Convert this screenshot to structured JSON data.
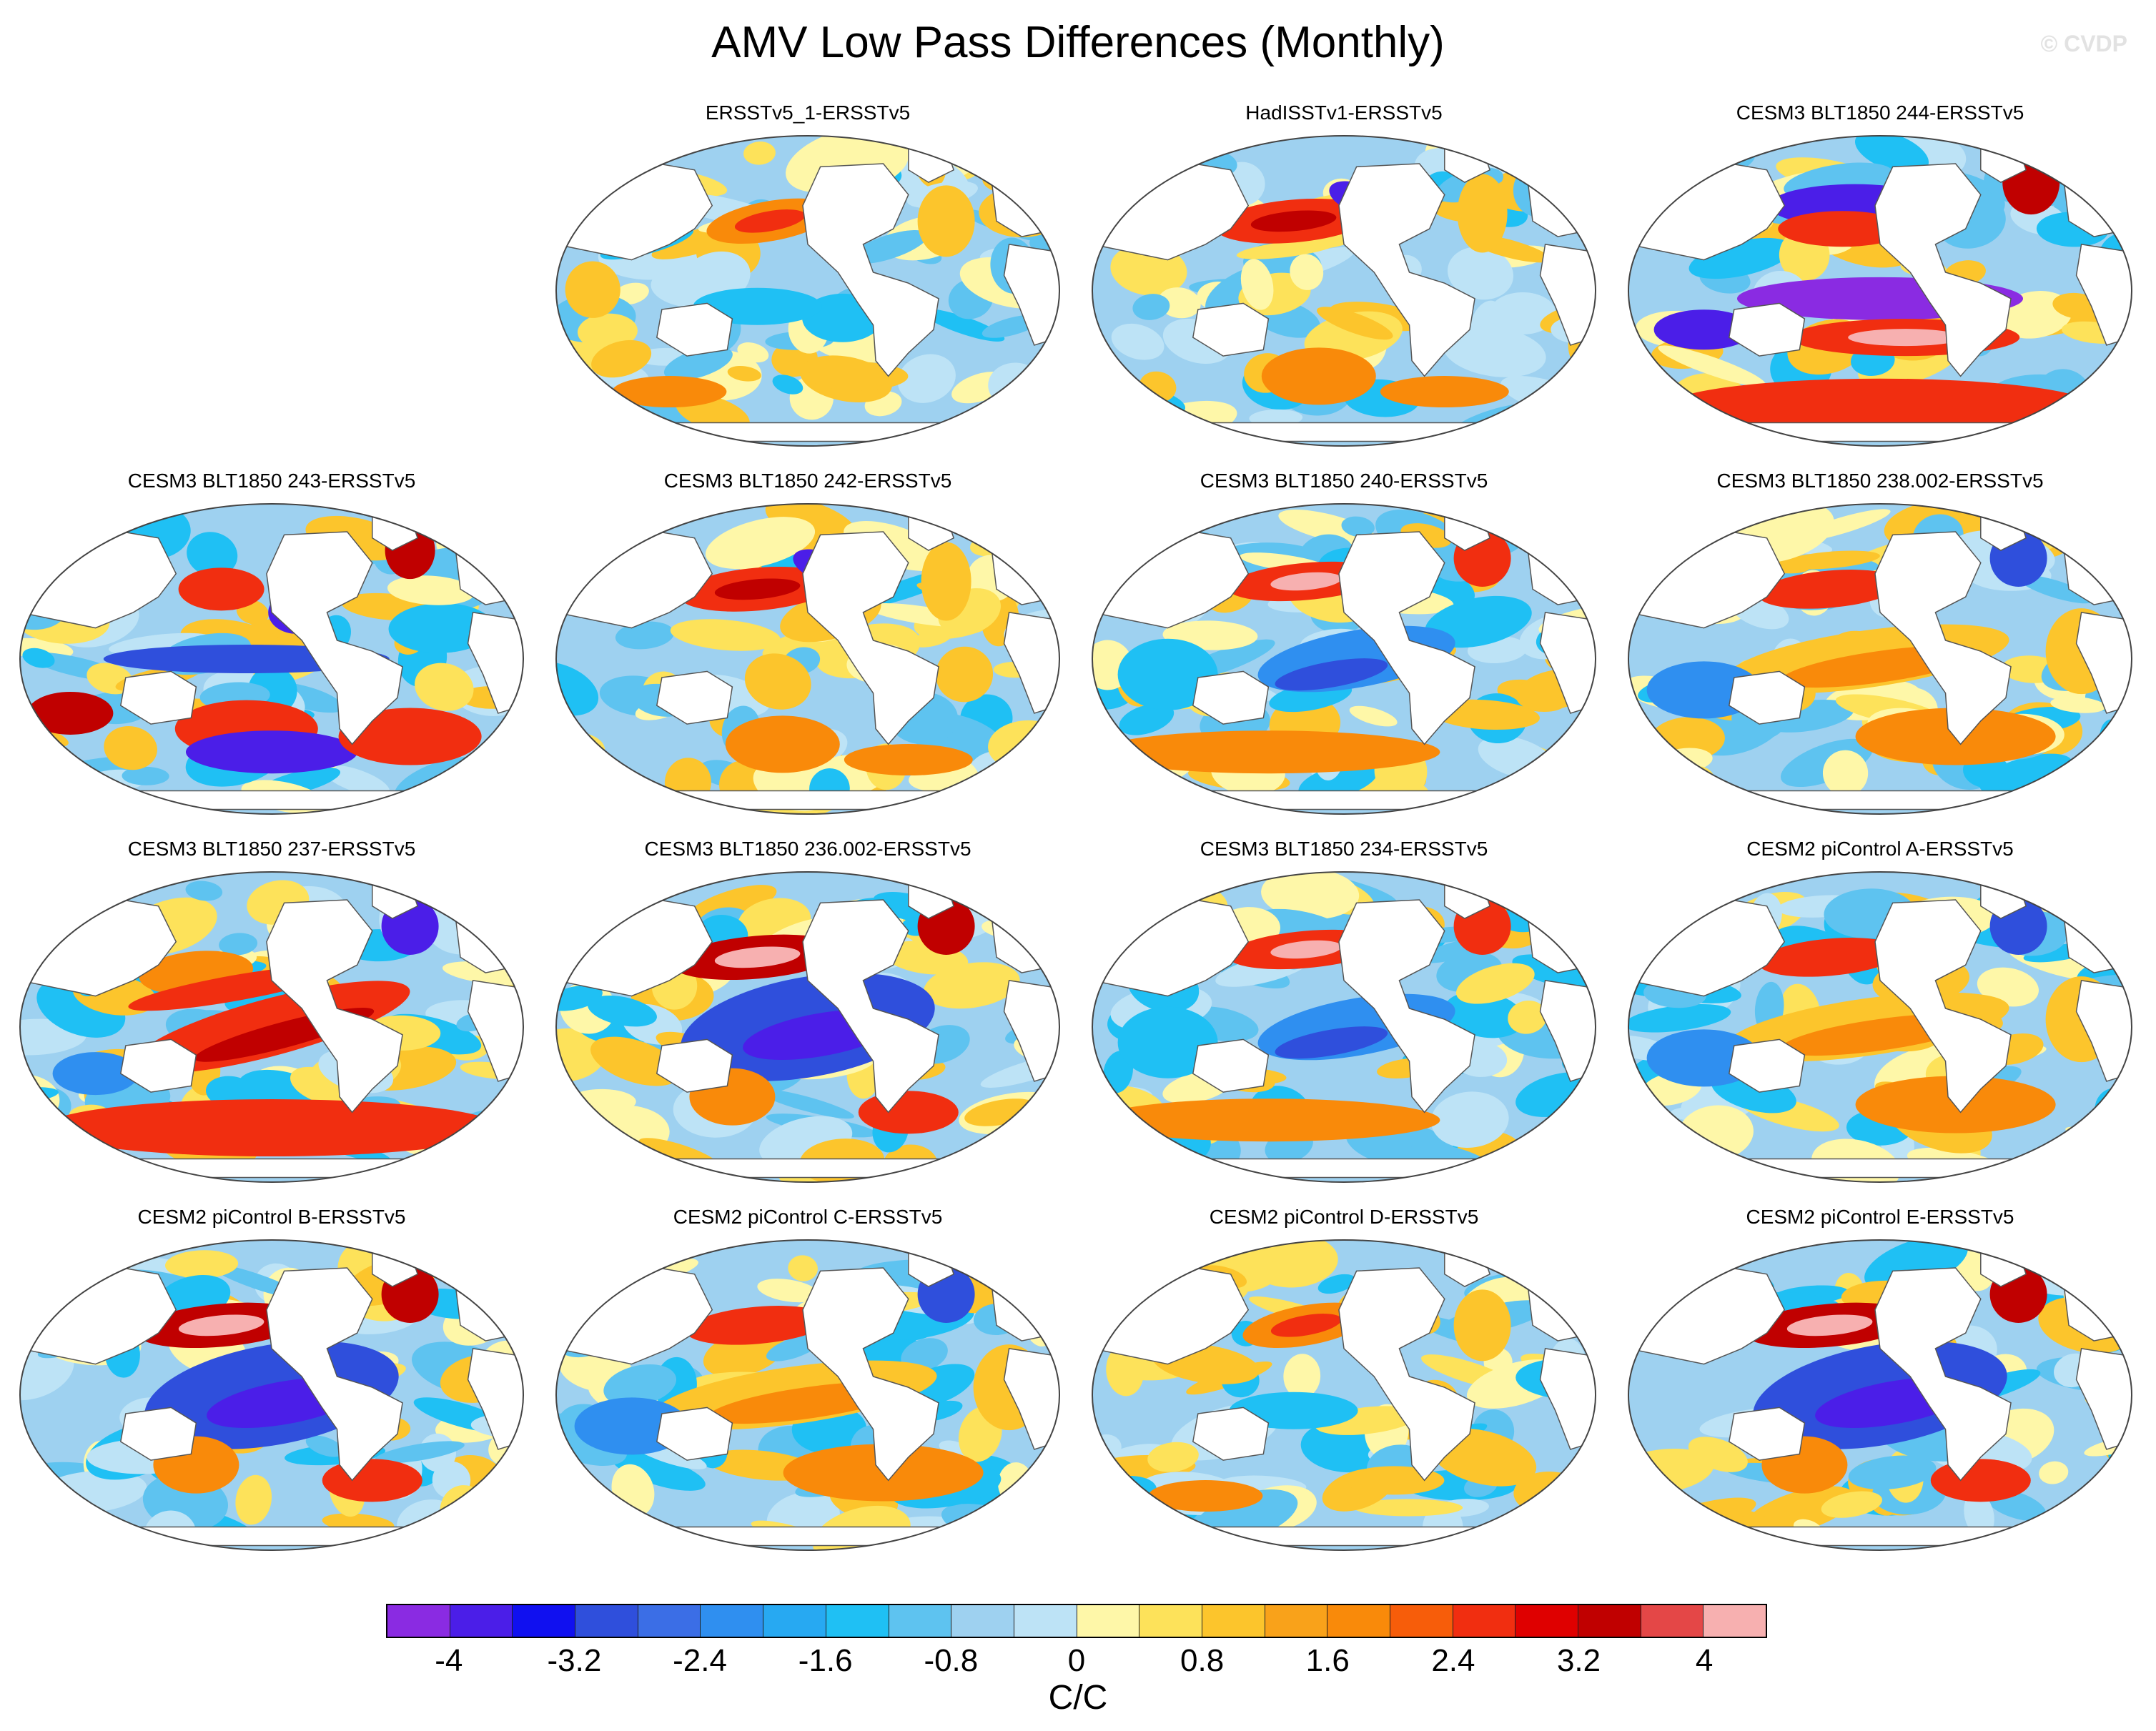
{
  "title": "AMV Low Pass Differences (Monthly)",
  "watermark": "© CVDP",
  "panels": [
    {
      "label": "ERSSTv5_1-ERSSTv5",
      "pattern": "weak-mixed"
    },
    {
      "label": "HadISSTv1-ERSSTv5",
      "pattern": "warm-kuroshio"
    },
    {
      "label": "CESM3 BLT1850 244-ERSSTv5",
      "pattern": "strong-dipole"
    },
    {
      "label": "CESM3 BLT1850 243-ERSSTv5",
      "pattern": "mixed-south-warm"
    },
    {
      "label": "CESM3 BLT1850 242-ERSSTv5",
      "pattern": "warm-kuroshio"
    },
    {
      "label": "CESM3 BLT1850 240-ERSSTv5",
      "pattern": "cool-pacific"
    },
    {
      "label": "CESM3 BLT1850 238.002-ERSSTv5",
      "pattern": "warm-pacific"
    },
    {
      "label": "CESM3 BLT1850 237-ERSSTv5",
      "pattern": "warm-pacific-strong"
    },
    {
      "label": "CESM3 BLT1850 236.002-ERSSTv5",
      "pattern": "cool-pacific-strong"
    },
    {
      "label": "CESM3 BLT1850 234-ERSSTv5",
      "pattern": "cool-pacific"
    },
    {
      "label": "CESM2 piControl A-ERSSTv5",
      "pattern": "warm-pacific"
    },
    {
      "label": "CESM2 piControl B-ERSSTv5",
      "pattern": "cool-pacific-strong"
    },
    {
      "label": "CESM2 piControl C-ERSSTv5",
      "pattern": "warm-pacific"
    },
    {
      "label": "CESM2 piControl D-ERSSTv5",
      "pattern": "weak-mixed"
    },
    {
      "label": "CESM2 piControl E-ERSSTv5",
      "pattern": "cool-pacific-strong"
    }
  ],
  "colorbar": {
    "colors": [
      "#8a2be2",
      "#4b1ee8",
      "#1010f0",
      "#2f4fdc",
      "#3b6ee6",
      "#2f8ff0",
      "#27a9f2",
      "#1fc0f4",
      "#5ec3f0",
      "#9ed1f0",
      "#bde3f6",
      "#fef7a8",
      "#fde25a",
      "#fcc52c",
      "#f9a21a",
      "#f98a0a",
      "#f75d0a",
      "#f12e10",
      "#df0000",
      "#c00000",
      "#e44747",
      "#f7b0b0"
    ],
    "tick_labels": [
      "-4",
      "-3.2",
      "-2.4",
      "-1.6",
      "-0.8",
      "0",
      "0.8",
      "1.6",
      "2.4",
      "3.2",
      "4"
    ],
    "units": "C/C"
  }
}
